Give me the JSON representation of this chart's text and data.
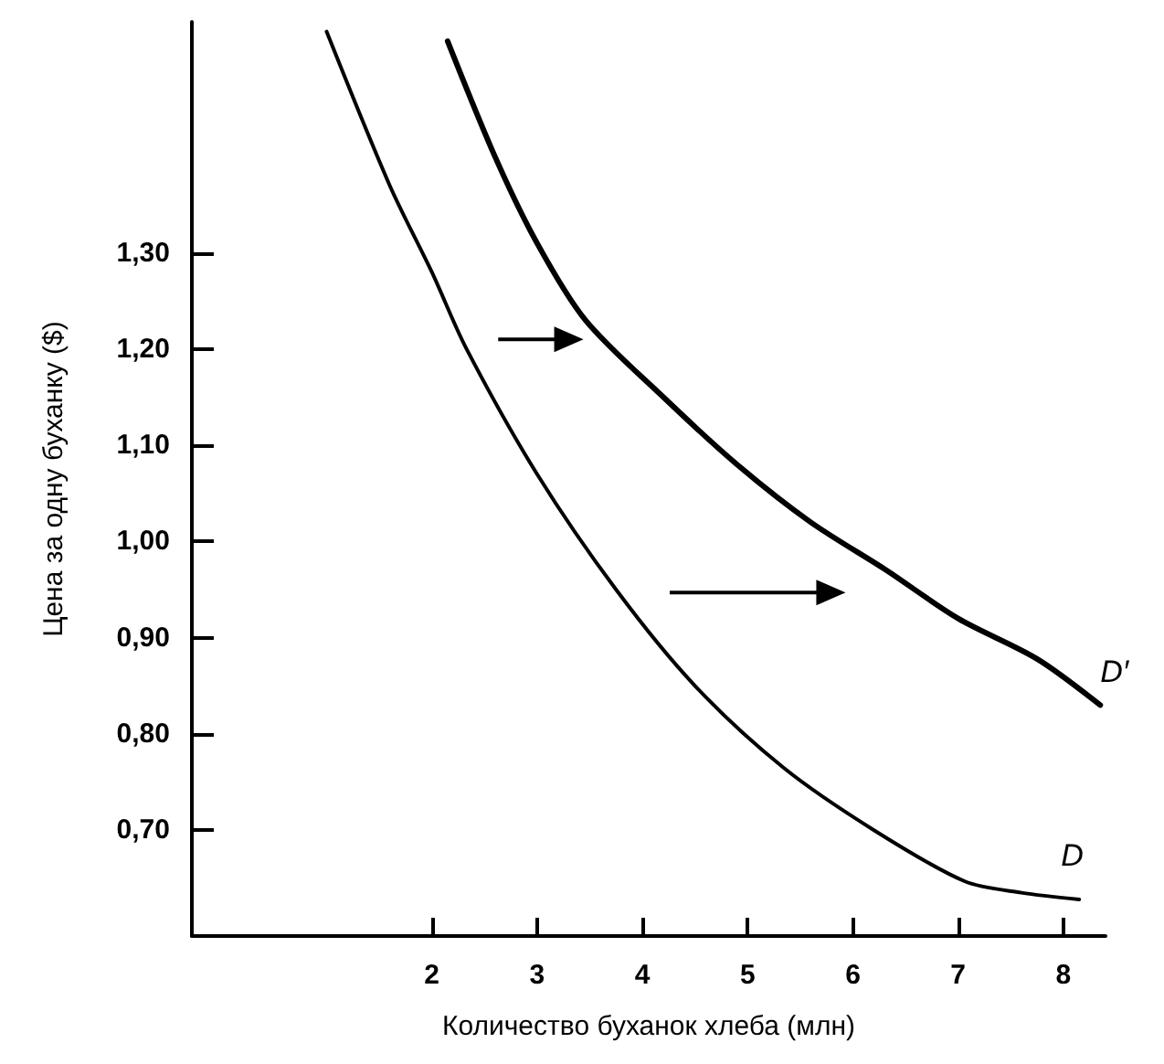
{
  "chart_data": {
    "type": "line",
    "xlabel": "Количество буханок хлеба (млн)",
    "ylabel": "Цена за одну буханку ($)",
    "xlim": [
      -0.28,
      8.4
    ],
    "ylim": [
      0.59,
      1.54
    ],
    "xticks": [
      2,
      3,
      4,
      5,
      6,
      7,
      8
    ],
    "yticks": [
      {
        "value": 0.7,
        "label": "0,70"
      },
      {
        "value": 0.8,
        "label": "0,80"
      },
      {
        "value": 0.9,
        "label": "0,90"
      },
      {
        "value": 1.0,
        "label": "1,00"
      },
      {
        "value": 1.1,
        "label": "1,10"
      },
      {
        "value": 1.2,
        "label": "1,20"
      },
      {
        "value": 1.3,
        "label": "1,30"
      }
    ],
    "grid": false,
    "legend": false,
    "marker": "none",
    "line_style": "solid",
    "series": [
      {
        "name": "D",
        "color": "#000000",
        "x": [
          1.0,
          1.6,
          2.0,
          2.33,
          3.0,
          3.75,
          4.5,
          5.34,
          6.2,
          7.06,
          7.6,
          8.15
        ],
        "values": [
          1.53,
          1.37,
          1.28,
          1.2,
          1.07,
          0.95,
          0.85,
          0.765,
          0.7,
          0.647,
          0.635,
          0.628
        ]
      },
      {
        "name": "D′",
        "color": "#000000",
        "x": [
          2.15,
          2.6,
          3.0,
          3.46,
          4.2,
          4.9,
          5.6,
          6.32,
          7.0,
          7.75,
          8.35
        ],
        "values": [
          1.52,
          1.4,
          1.31,
          1.23,
          1.15,
          1.08,
          1.02,
          0.97,
          0.92,
          0.878,
          0.83
        ]
      }
    ]
  }
}
